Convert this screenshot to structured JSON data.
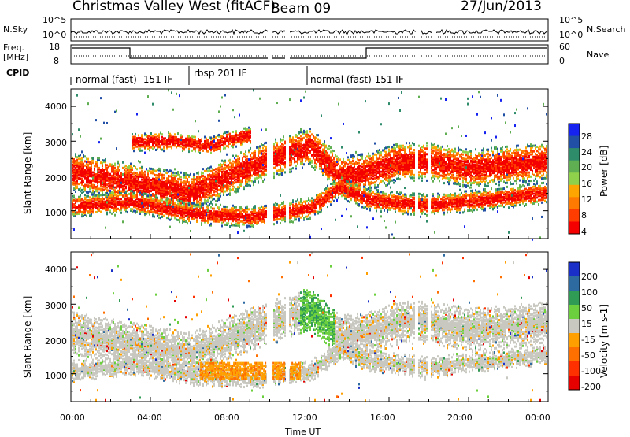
{
  "header": {
    "station": "Christmas Valley West (fitACF)",
    "beam": "Beam 09",
    "date": "27/Jun/2013"
  },
  "top_panels": {
    "nsky_label": "N.Sky",
    "nsky_ticks": [
      "10^5",
      "10^0"
    ],
    "nsearch_label": "N.Search",
    "nsearch_ticks": [
      "10^5",
      "10^0"
    ],
    "freq_label": "Freq.",
    "freq_unit": "[MHz]",
    "freq_ticks": [
      "18",
      "8"
    ],
    "nave_label": "Nave",
    "nave_ticks": [
      "60",
      "0"
    ],
    "cpid_label": "CPID",
    "cpid_segments": [
      "normal (fast) -151 IF",
      "rbsp 201 IF",
      "normal (fast) 151 IF"
    ]
  },
  "chart_data": [
    {
      "type": "heatmap",
      "name": "power",
      "ylabel": "Slant Range [km]",
      "xlabel": "",
      "ylim": [
        200,
        4500
      ],
      "yticks": [
        "1000",
        "2000",
        "3000",
        "4000"
      ],
      "xlim_hours": [
        0,
        24
      ],
      "colorbar_label": "Power [dB]",
      "colorbar_ticks": [
        "4",
        "8",
        "12",
        "16",
        "20",
        "24",
        "28"
      ],
      "colorbar_colors": [
        "#1522f0",
        "#214fa6",
        "#2f8c6a",
        "#5fae52",
        "#8fd14a",
        "#ffa500",
        "#ff7a00",
        "#ff3d00",
        "#f50000"
      ],
      "bands": [
        {
          "x": [
            0,
            3,
            6,
            9,
            12,
            13.5,
            15,
            16.5,
            18,
            20,
            24
          ],
          "y": [
            2150,
            1850,
            1550,
            2300,
            2900,
            2050,
            2150,
            2450,
            2450,
            2250,
            2450
          ],
          "width": 550
        },
        {
          "x": [
            0,
            3,
            6,
            9,
            12,
            13.5,
            15,
            16.5,
            18,
            20,
            24
          ],
          "y": [
            1150,
            1300,
            950,
            850,
            1100,
            1700,
            1350,
            1250,
            1200,
            1300,
            1550
          ],
          "width": 300
        },
        {
          "x": [
            3,
            5,
            7,
            8,
            9
          ],
          "y": [
            3000,
            3050,
            2900,
            3100,
            3200
          ],
          "width": 250
        }
      ]
    },
    {
      "type": "heatmap",
      "name": "velocity",
      "ylabel": "Slant Range [km]",
      "xlabel": "Time UT",
      "ylim": [
        200,
        4500
      ],
      "yticks": [
        "1000",
        "2000",
        "3000",
        "4000"
      ],
      "xticks": [
        "00:00",
        "04:00",
        "08:00",
        "12:00",
        "16:00",
        "20:00",
        "00:00"
      ],
      "xlim_hours": [
        0,
        24
      ],
      "colorbar_label": "Velocity [m s-1]",
      "colorbar_ticks": [
        "200",
        "100",
        "50",
        "15",
        "-15",
        "-50",
        "-100",
        "-200"
      ],
      "colorbar_colors": [
        "#1a2ec8",
        "#2c6aa0",
        "#2f9b55",
        "#6ccf3e",
        "#c8c8c0",
        "#ffa000",
        "#ff7000",
        "#ff3000",
        "#e60000"
      ],
      "bands": [
        {
          "x": [
            0,
            3,
            6,
            9,
            12,
            13.5,
            15,
            16.5,
            18,
            20,
            24
          ],
          "y": [
            2200,
            1900,
            1600,
            2300,
            2900,
            2100,
            2200,
            2500,
            2500,
            2300,
            2500
          ],
          "width": 600
        },
        {
          "x": [
            0,
            3,
            6,
            9,
            12,
            13.5,
            15,
            16.5,
            18,
            20,
            24
          ],
          "y": [
            1100,
            1300,
            1000,
            900,
            1100,
            1700,
            1400,
            1300,
            1200,
            1350,
            1600
          ],
          "width": 300
        }
      ],
      "orange_region": {
        "x": [
          6.5,
          11.5
        ],
        "y": [
          900,
          1350
        ]
      }
    }
  ]
}
